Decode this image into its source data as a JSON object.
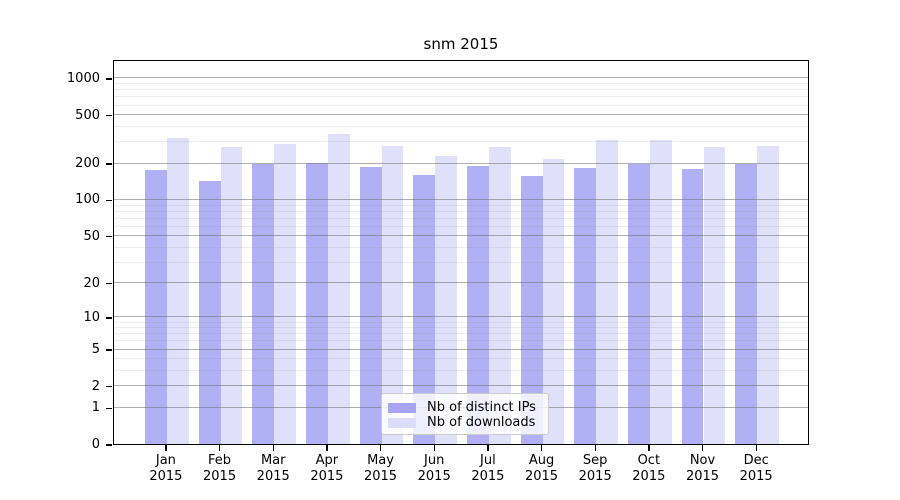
{
  "chart_data": {
    "type": "bar",
    "title": "snm 2015",
    "categories": [
      "Jan 2015",
      "Feb 2015",
      "Mar 2015",
      "Apr 2015",
      "May 2015",
      "Jun 2015",
      "Jul 2015",
      "Aug 2015",
      "Sep 2015",
      "Oct 2015",
      "Nov 2015",
      "Dec 2015"
    ],
    "series": [
      {
        "name": "Nb of distinct IPs",
        "color": "#a5a5f2",
        "values": [
          174,
          142,
          196,
          200,
          186,
          159,
          188,
          157,
          182,
          195,
          178,
          197
        ]
      },
      {
        "name": "Nb of downloads",
        "color": "#dcdcf9",
        "values": [
          321,
          272,
          288,
          348,
          276,
          230,
          272,
          216,
          312,
          308,
          271,
          278
        ]
      }
    ],
    "xlabel": "",
    "ylabel": "",
    "y_scale": "log1p",
    "ylim": [
      0,
      1431
    ],
    "y_ticks": [
      0,
      1,
      2,
      5,
      10,
      20,
      50,
      100,
      200,
      500,
      1000
    ],
    "y_minor_ticks": [
      3,
      4,
      6,
      7,
      8,
      9,
      30,
      40,
      60,
      70,
      80,
      90,
      300,
      400,
      600,
      700,
      800,
      900
    ],
    "grid": "horizontal-major-and-minor",
    "legend_position": "lower-center-inside",
    "bar_opacity": 0.88
  }
}
